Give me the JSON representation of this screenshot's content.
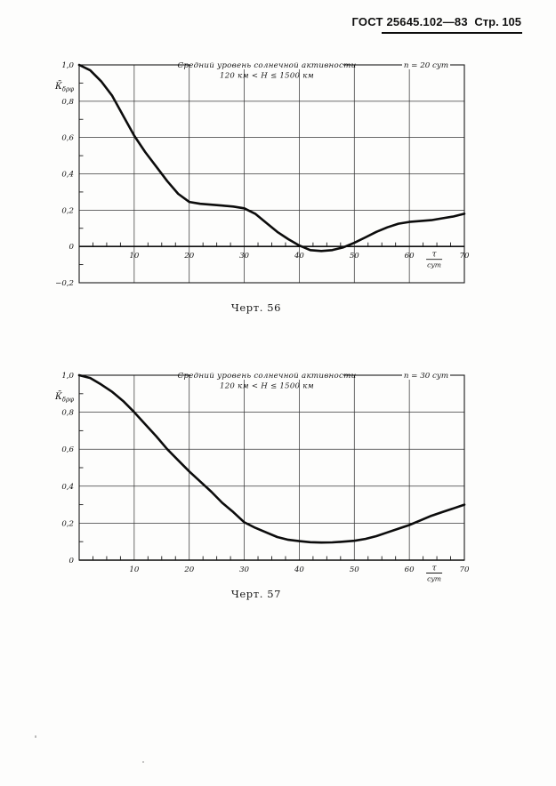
{
  "page": {
    "header": {
      "gost": "ГОСТ 25645.102—83",
      "page": "Стр. 105"
    }
  },
  "chart_data": [
    {
      "type": "line",
      "caption": "Черт. 56",
      "title": "Средний уровень солнечной активности",
      "subtitle": "120 км < Н ≤ 1500 км",
      "corner_label": "n = 20 сут",
      "ylabel_base": "К̄",
      "ylabel_sub": "δρφ",
      "xunit_numerator": "τ",
      "xunit_denominator": "сут",
      "xlim": [
        0,
        70
      ],
      "ylim": [
        -0.2,
        1.0
      ],
      "xticks": [
        10,
        20,
        30,
        40,
        50,
        60,
        70
      ],
      "xtick_labels": [
        "10",
        "20",
        "30",
        "40",
        "50",
        "60",
        "70"
      ],
      "yticks": [
        -0.2,
        0,
        0.2,
        0.4,
        0.6,
        0.8,
        1.0
      ],
      "ytick_labels": [
        "−0,2",
        "0",
        "0,2",
        "0,4",
        "0,6",
        "0,8",
        "1,0"
      ],
      "minor_tick_x": 2.5,
      "minor_tick_y": 0.1,
      "grid": true,
      "x": [
        0,
        2,
        4,
        6,
        8,
        10,
        12,
        14,
        16,
        18,
        20,
        22,
        24,
        26,
        28,
        30,
        32,
        34,
        36,
        38,
        40,
        42,
        44,
        46,
        48,
        50,
        52,
        54,
        56,
        58,
        60,
        62,
        64,
        66,
        68,
        70
      ],
      "y": [
        1.0,
        0.97,
        0.91,
        0.83,
        0.72,
        0.61,
        0.52,
        0.44,
        0.36,
        0.29,
        0.245,
        0.235,
        0.23,
        0.225,
        0.22,
        0.21,
        0.18,
        0.13,
        0.08,
        0.04,
        0.005,
        -0.02,
        -0.025,
        -0.02,
        -0.005,
        0.02,
        0.05,
        0.08,
        0.105,
        0.125,
        0.135,
        0.14,
        0.145,
        0.155,
        0.165,
        0.18
      ]
    },
    {
      "type": "line",
      "caption": "Черт. 57",
      "title": "Средний уровень солнечной активности",
      "subtitle": "120 км < Н ≤ 1500 км",
      "corner_label": "n = 30 сут",
      "ylabel_base": "К̄",
      "ylabel_sub": "δρφ",
      "xunit_numerator": "τ",
      "xunit_denominator": "сут",
      "xlim": [
        0,
        70
      ],
      "ylim": [
        0,
        1.0
      ],
      "xticks": [
        10,
        20,
        30,
        40,
        50,
        60,
        70
      ],
      "xtick_labels": [
        "10",
        "20",
        "30",
        "40",
        "50",
        "60",
        "70"
      ],
      "yticks": [
        0,
        0.2,
        0.4,
        0.6,
        0.8,
        1.0
      ],
      "ytick_labels": [
        "0",
        "0,2",
        "0,4",
        "0,6",
        "0,8",
        "1,0"
      ],
      "minor_tick_x": 2.5,
      "minor_tick_y": 0.1,
      "grid": true,
      "x": [
        0,
        2,
        4,
        6,
        8,
        10,
        12,
        14,
        16,
        18,
        20,
        22,
        24,
        26,
        28,
        30,
        32,
        34,
        36,
        38,
        40,
        42,
        44,
        46,
        48,
        50,
        52,
        54,
        56,
        58,
        60,
        62,
        64,
        66,
        68,
        70
      ],
      "y": [
        1.0,
        0.985,
        0.95,
        0.91,
        0.86,
        0.8,
        0.735,
        0.67,
        0.6,
        0.54,
        0.48,
        0.425,
        0.37,
        0.31,
        0.26,
        0.205,
        0.175,
        0.15,
        0.125,
        0.11,
        0.103,
        0.097,
        0.095,
        0.096,
        0.1,
        0.105,
        0.115,
        0.13,
        0.15,
        0.17,
        0.19,
        0.215,
        0.24,
        0.26,
        0.28,
        0.3
      ]
    }
  ]
}
